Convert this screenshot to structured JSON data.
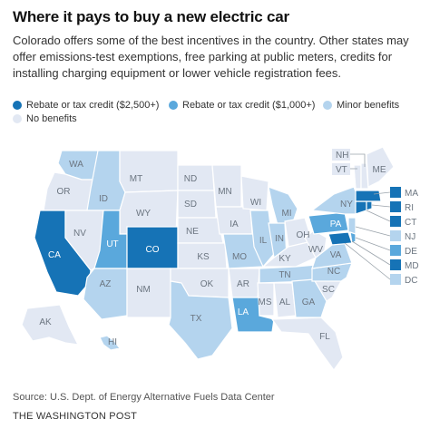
{
  "header": {
    "title": "Where it pays to buy a new electric car",
    "subtitle": "Colorado offers some of the best incentives in the country. Other states may offer emissions-test exemptions, free parking at public meters, credits for installing charging equipment or lower vehicle registration fees."
  },
  "legend": [
    {
      "label": "Rebate or tax credit ($2,500+)",
      "color": "#1673b6"
    },
    {
      "label": "Rebate or tax credit ($1,000+)",
      "color": "#5aa8dc"
    },
    {
      "label": "Minor benefits",
      "color": "#b4d4ee"
    },
    {
      "label": "No benefits",
      "color": "#e2e8f3"
    }
  ],
  "colors": {
    "top": "#1673b6",
    "mid": "#5aa8dc",
    "minor": "#b4d4ee",
    "none": "#e2e8f3"
  },
  "map": {
    "states": [
      {
        "abbr": "WA",
        "level": "minor"
      },
      {
        "abbr": "OR",
        "level": "none"
      },
      {
        "abbr": "CA",
        "level": "top"
      },
      {
        "abbr": "ID",
        "level": "minor"
      },
      {
        "abbr": "NV",
        "level": "none"
      },
      {
        "abbr": "MT",
        "level": "none"
      },
      {
        "abbr": "WY",
        "level": "none"
      },
      {
        "abbr": "UT",
        "level": "mid"
      },
      {
        "abbr": "AZ",
        "level": "minor"
      },
      {
        "abbr": "CO",
        "level": "top"
      },
      {
        "abbr": "NM",
        "level": "none"
      },
      {
        "abbr": "ND",
        "level": "none"
      },
      {
        "abbr": "SD",
        "level": "none"
      },
      {
        "abbr": "NE",
        "level": "none"
      },
      {
        "abbr": "KS",
        "level": "none"
      },
      {
        "abbr": "OK",
        "level": "none"
      },
      {
        "abbr": "TX",
        "level": "minor"
      },
      {
        "abbr": "MN",
        "level": "none"
      },
      {
        "abbr": "IA",
        "level": "none"
      },
      {
        "abbr": "MO",
        "level": "minor"
      },
      {
        "abbr": "AR",
        "level": "none"
      },
      {
        "abbr": "LA",
        "level": "mid"
      },
      {
        "abbr": "WI",
        "level": "none"
      },
      {
        "abbr": "IL",
        "level": "minor"
      },
      {
        "abbr": "MI",
        "level": "minor"
      },
      {
        "abbr": "IN",
        "level": "minor"
      },
      {
        "abbr": "OH",
        "level": "none"
      },
      {
        "abbr": "KY",
        "level": "none"
      },
      {
        "abbr": "TN",
        "level": "minor"
      },
      {
        "abbr": "MS",
        "level": "none"
      },
      {
        "abbr": "AL",
        "level": "none"
      },
      {
        "abbr": "GA",
        "level": "minor"
      },
      {
        "abbr": "FL",
        "level": "none"
      },
      {
        "abbr": "SC",
        "level": "none"
      },
      {
        "abbr": "NC",
        "level": "minor"
      },
      {
        "abbr": "VA",
        "level": "minor"
      },
      {
        "abbr": "WV",
        "level": "none"
      },
      {
        "abbr": "PA",
        "level": "mid"
      },
      {
        "abbr": "NY",
        "level": "minor"
      },
      {
        "abbr": "ME",
        "level": "none"
      },
      {
        "abbr": "AK",
        "level": "none"
      },
      {
        "abbr": "HI",
        "level": "minor"
      }
    ],
    "northeast_small": [
      {
        "abbr": "NH",
        "level": "none"
      },
      {
        "abbr": "VT",
        "level": "none"
      },
      {
        "abbr": "MA",
        "level": "top"
      },
      {
        "abbr": "RI",
        "level": "top"
      },
      {
        "abbr": "CT",
        "level": "top"
      },
      {
        "abbr": "NJ",
        "level": "minor"
      },
      {
        "abbr": "DE",
        "level": "mid"
      },
      {
        "abbr": "MD",
        "level": "top"
      },
      {
        "abbr": "DC",
        "level": "minor"
      }
    ]
  },
  "footer": {
    "source": "Source: U.S. Dept. of Energy Alternative Fuels Data Center",
    "credit": "THE WASHINGTON POST"
  }
}
